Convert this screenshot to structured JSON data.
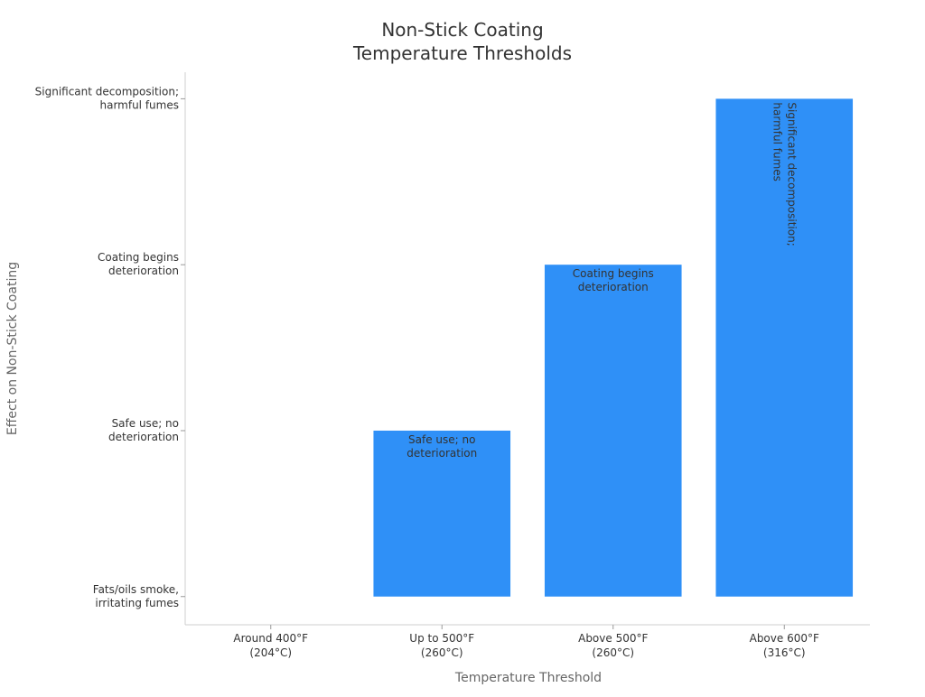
{
  "chart_data": {
    "type": "bar",
    "title": [
      "Non-Stick Coating",
      "Temperature Thresholds"
    ],
    "xlabel": "Temperature Threshold",
    "ylabel": "Effect on Non-Stick Coating",
    "categories": [
      [
        "Around 400°F",
        "(204°C)"
      ],
      [
        "Up to 500°F",
        "(260°C)"
      ],
      [
        "Above 500°F",
        "(260°C)"
      ],
      [
        "Above 600°F",
        "(316°C)"
      ]
    ],
    "values": [
      0,
      1,
      2,
      3
    ],
    "y_categories": [
      [
        "Fats/oils smoke,",
        "irritating fumes"
      ],
      [
        "Safe use; no",
        "deterioration"
      ],
      [
        "Coating begins",
        "deterioration"
      ],
      [
        "Significant decomposition;",
        "harmful fumes"
      ]
    ],
    "data_labels": [
      [],
      [
        "Safe use; no",
        "deterioration"
      ],
      [
        "Coating begins",
        "deterioration"
      ],
      [
        "Significant decomposition;",
        "harmful fumes"
      ]
    ],
    "ylim": [
      -0.17,
      3.16
    ],
    "grid": false,
    "legend": "none",
    "colors": {
      "bar": "#2f90f7",
      "axis": "#cfcfcf",
      "text": "#333333",
      "muted": "#666666"
    }
  }
}
